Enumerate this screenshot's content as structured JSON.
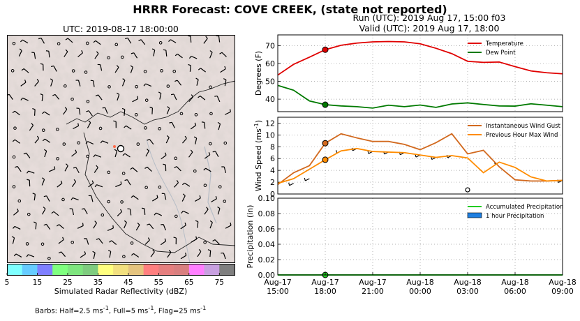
{
  "title": "HRRR Forecast: COVE CREEK, (state not reported)",
  "run_line": "Run (UTC): 2019 Aug 17, 15:00 f03",
  "valid_line": "Valid (UTC): 2019 Aug 17, 18:00",
  "map": {
    "title": "UTC: 2019-08-17 18:00:00",
    "colorbar_label": "Simulated Radar Reflectivity (dBZ)",
    "colorbar_ticks": [
      "5",
      "15",
      "25",
      "35",
      "45",
      "55",
      "65",
      "75"
    ],
    "colorbar_colors": [
      "#7fffff",
      "#66ccff",
      "#7f7fff",
      "#7fff7f",
      "#7fe57f",
      "#7fcc7f",
      "#ffff7f",
      "#f2e07f",
      "#e5c47f",
      "#ff7f7f",
      "#e57f7f",
      "#d97f7f",
      "#ff7fff",
      "#c8a0e0",
      "#7f7f7f"
    ],
    "barbs_note": "Barbs: Half=2.5 ms",
    "barbs_note_2": ", Full=5 ms",
    "barbs_note_3": ", Flag=25 ms",
    "barbs_sup": "-1"
  },
  "chart_data": [
    {
      "type": "line",
      "ylabel": "Degrees (F)",
      "ylim": [
        33,
        76
      ],
      "yticks": [
        40,
        50,
        60,
        70
      ],
      "x_hours": [
        0,
        1,
        2,
        3,
        4,
        5,
        6,
        7,
        8,
        9,
        10,
        11,
        12,
        13,
        14,
        15,
        16,
        17,
        18
      ],
      "series": [
        {
          "name": "Temperature",
          "color": "#e00000",
          "values": [
            53.5,
            59.5,
            63.5,
            67.7,
            70.2,
            71.4,
            72.1,
            72.3,
            72.1,
            71,
            68.5,
            65.5,
            61.2,
            60.6,
            60.8,
            58.2,
            55.8,
            54.8,
            54.2
          ]
        },
        {
          "name": "Dew Point",
          "color": "#007a00",
          "values": [
            47.7,
            45,
            39,
            36.9,
            36.2,
            35.8,
            35,
            36.6,
            35.8,
            36.7,
            35.4,
            37.3,
            37.9,
            37,
            36.2,
            36.1,
            37.4,
            36.6,
            35.8
          ]
        }
      ],
      "marker_hour": 3,
      "legend": "top-right"
    },
    {
      "type": "line",
      "ylabel": "Wind Speed (ms",
      "ylabel_sup": "-1",
      "ylabel_end": ")",
      "ylim": [
        0,
        13
      ],
      "yticks": [
        0,
        2,
        4,
        6,
        8,
        10,
        12
      ],
      "x_hours": [
        0,
        1,
        2,
        3,
        4,
        5,
        6,
        7,
        8,
        9,
        10,
        11,
        12,
        13,
        14,
        15,
        16,
        17,
        18
      ],
      "series": [
        {
          "name": "Instantaneous Wind Gust",
          "color": "#d2691e",
          "values": [
            1.6,
            3.6,
            4.8,
            8.6,
            10.2,
            9.5,
            8.9,
            8.9,
            8.4,
            7.5,
            8.7,
            10.2,
            6.8,
            7.4,
            4.6,
            2.4,
            2.2,
            2.2,
            2.3
          ]
        },
        {
          "name": "Previous Hour Max Wind",
          "color": "#ff8c00",
          "values": [
            1.8,
            2.6,
            4.2,
            5.8,
            7.3,
            7.7,
            7.2,
            7.1,
            7.0,
            6.6,
            6.2,
            6.5,
            6.1,
            3.6,
            5.4,
            4.5,
            2.9,
            2.2,
            2.3
          ]
        }
      ],
      "marker_hour": 3,
      "legend": "top-right"
    },
    {
      "type": "line",
      "ylabel": "Precipitation (in)",
      "ylim": [
        0,
        0.1
      ],
      "yticks": [
        "0.00",
        "0.02",
        "0.04",
        "0.06",
        "0.08",
        "0.10"
      ],
      "x_hours": [
        0,
        18
      ],
      "series": [
        {
          "name": "Accumulated Precipitation",
          "color": "#22cc22",
          "values": [
            0,
            0
          ]
        },
        {
          "name": "1 hour Precipitation",
          "color": "#1f7fe0",
          "values": [
            0,
            0
          ]
        }
      ],
      "marker_hour": 3,
      "legend": "top-right"
    }
  ],
  "x_ticks": [
    {
      "hour": 0,
      "l1": "Aug-17",
      "l2": "15:00"
    },
    {
      "hour": 3,
      "l1": "Aug-17",
      "l2": "18:00"
    },
    {
      "hour": 6,
      "l1": "Aug-17",
      "l2": "21:00"
    },
    {
      "hour": 9,
      "l1": "Aug-18",
      "l2": "00:00"
    },
    {
      "hour": 12,
      "l1": "Aug-18",
      "l2": "03:00"
    },
    {
      "hour": 15,
      "l1": "Aug-18",
      "l2": "06:00"
    },
    {
      "hour": 18,
      "l1": "Aug-18",
      "l2": "09:00"
    }
  ]
}
